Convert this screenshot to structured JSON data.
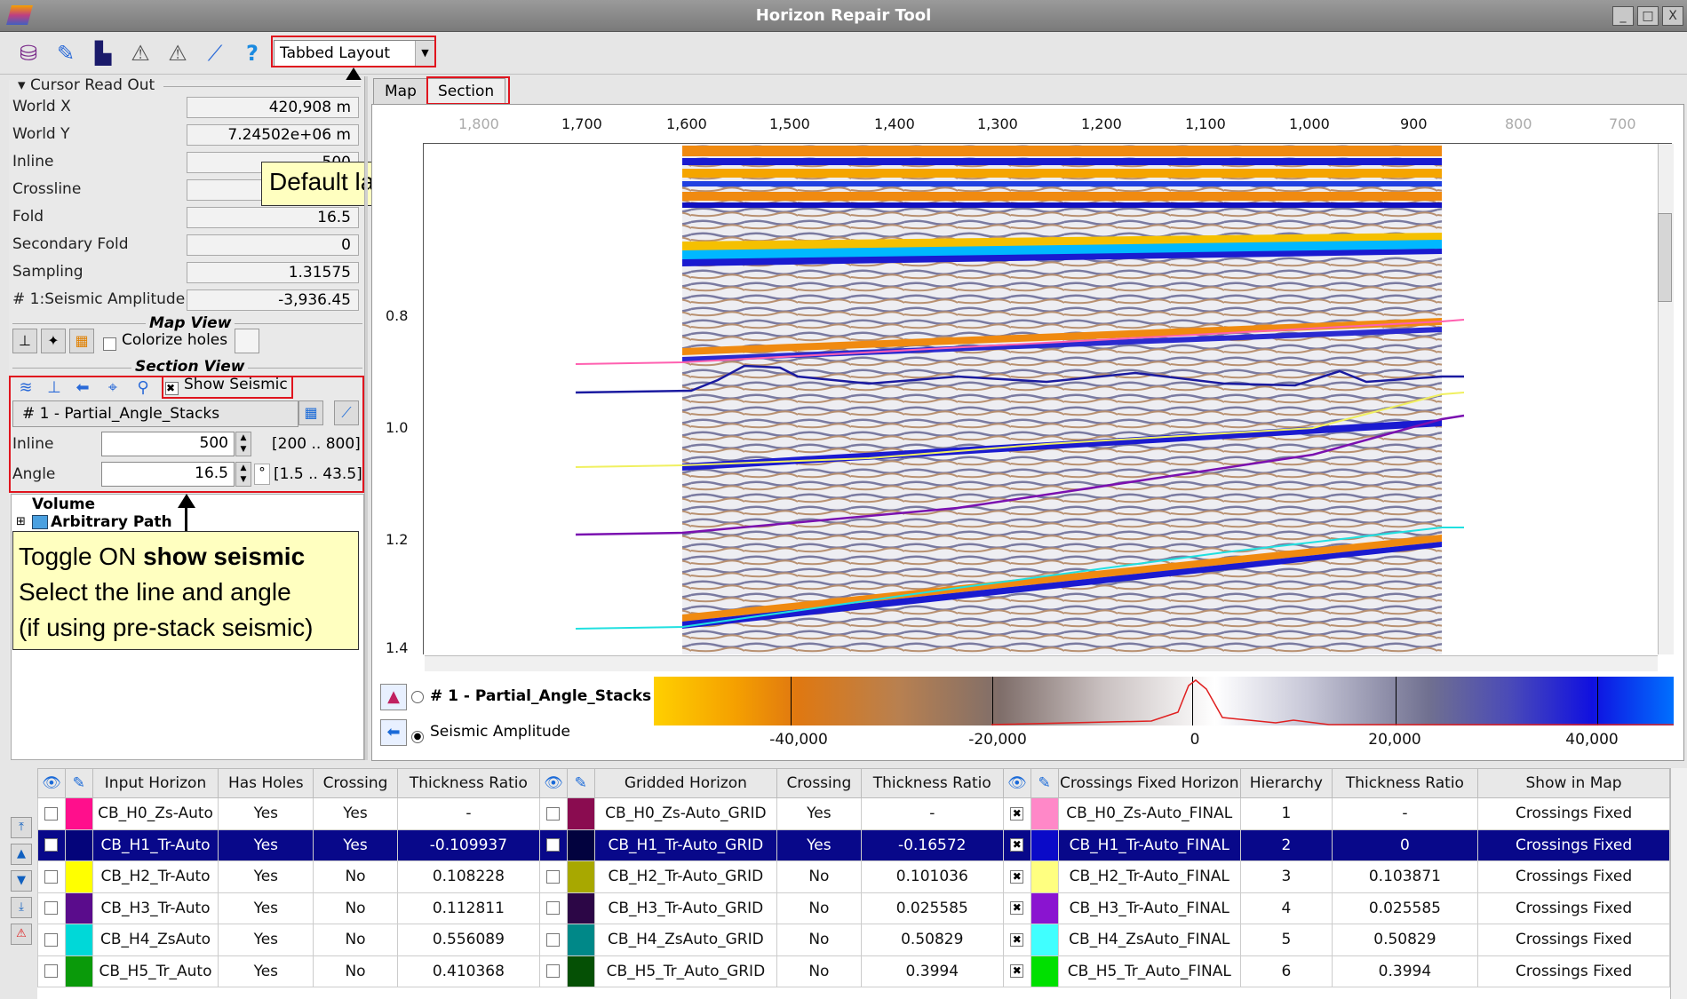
{
  "window": {
    "title": "Horizon Repair Tool",
    "buttons": [
      "_",
      "□",
      "X"
    ]
  },
  "toolbar": {
    "icons": [
      "database-icon",
      "pencil-icon",
      "save-icon",
      "warning-triangle-icon",
      "warning-triangle-alt-icon",
      "brush-icon",
      "help-icon"
    ],
    "layout_combo": "Tabbed Layout"
  },
  "cursor_readout": {
    "header": "Cursor Read Out",
    "rows": [
      {
        "label": "World X",
        "value": "420,908 m"
      },
      {
        "label": "World Y",
        "value": "7.24502e+06 m"
      },
      {
        "label": "Inline",
        "value": "500"
      },
      {
        "label": "Crossline",
        "value": ""
      },
      {
        "label": "Fold",
        "value": "16.5"
      },
      {
        "label": "Secondary Fold",
        "value": "0"
      },
      {
        "label": "Sampling",
        "value": "1.31575"
      },
      {
        "label": "# 1:Seismic Amplitude",
        "value": "-3,936.45"
      }
    ]
  },
  "map_view": {
    "header": "Map View",
    "colorize_label": "Colorize holes"
  },
  "section_view": {
    "header": "Section View",
    "show_seismic_label": "Show Seismic",
    "volume_combo": "# 1 - Partial_Angle_Stacks",
    "inline_label": "Inline",
    "inline_value": "500",
    "inline_range": "[200 .. 800]",
    "angle_label": "Angle",
    "angle_value": "16.5",
    "angle_unit": "°",
    "angle_range": "[1.5 .. 43.5]"
  },
  "tree": {
    "volume": "Volume",
    "arbitrary_path": "Arbitrary Path"
  },
  "callouts": {
    "default_layout": "Default layout",
    "toggle_line1_a": "Toggle ON ",
    "toggle_line1_b": "show seismic",
    "toggle_line2": "Select the line and angle",
    "toggle_line3": "(if using pre-stack seismic)"
  },
  "tabs": [
    {
      "label": "Map"
    },
    {
      "label": "Section"
    }
  ],
  "section": {
    "x_ticks": [
      {
        "label": "1,800",
        "dim": true
      },
      {
        "label": "1,700",
        "dim": false
      },
      {
        "label": "1,600",
        "dim": false
      },
      {
        "label": "1,500",
        "dim": false
      },
      {
        "label": "1,400",
        "dim": false
      },
      {
        "label": "1,300",
        "dim": false
      },
      {
        "label": "1,200",
        "dim": false
      },
      {
        "label": "1,100",
        "dim": false
      },
      {
        "label": "1,000",
        "dim": false
      },
      {
        "label": "900",
        "dim": false
      },
      {
        "label": "800",
        "dim": true
      },
      {
        "label": "700",
        "dim": true
      }
    ],
    "y_ticks": [
      "0.8",
      "1.0",
      "1.2",
      "1.4"
    ]
  },
  "legend": {
    "volume": "# 1 - Partial_Angle_Stacks",
    "attribute": "Seismic Amplitude",
    "ticks": [
      "-40,000",
      "-20,000",
      "0",
      "20,000",
      "40,000"
    ]
  },
  "table": {
    "headers": [
      "Input Horizon",
      "Has Holes",
      "Crossing",
      "Thickness Ratio",
      "Gridded Horizon",
      "Crossing",
      "Thickness Ratio",
      "Crossings Fixed Horizon",
      "Hierarchy",
      "Thickness Ratio",
      "Show in Map"
    ],
    "rows": [
      {
        "c1": "#ff0f8c",
        "input": "CB_H0_Zs-Auto",
        "holes": "Yes",
        "cross": "Yes",
        "ratio": "-",
        "c2": "#8a0c50",
        "grid": "CB_H0_Zs-Auto_GRID",
        "gcross": "Yes",
        "gratio": "-",
        "c3": "#ff88c8",
        "fixed": "CB_H0_Zs-Auto_FINAL",
        "hier": "1",
        "fratio": "-",
        "show": "Crossings Fixed",
        "sel": false
      },
      {
        "c1": "#04047a",
        "input": "CB_H1_Tr-Auto",
        "holes": "Yes",
        "cross": "Yes",
        "ratio": "-0.109937",
        "c2": "#02023e",
        "grid": "CB_H1_Tr-Auto_GRID",
        "gcross": "Yes",
        "gratio": "-0.16572",
        "c3": "#0a0ac8",
        "fixed": "CB_H1_Tr-Auto_FINAL",
        "hier": "2",
        "fratio": "0",
        "show": "Crossings Fixed",
        "sel": true
      },
      {
        "c1": "#ffff00",
        "input": "CB_H2_Tr-Auto",
        "holes": "Yes",
        "cross": "No",
        "ratio": "0.108228",
        "c2": "#a8a800",
        "grid": "CB_H2_Tr-Auto_GRID",
        "gcross": "No",
        "gratio": "0.101036",
        "c3": "#ffff80",
        "fixed": "CB_H2_Tr-Auto_FINAL",
        "hier": "3",
        "fratio": "0.103871",
        "show": "Crossings Fixed",
        "sel": false
      },
      {
        "c1": "#5a0c8c",
        "input": "CB_H3_Tr-Auto",
        "holes": "Yes",
        "cross": "No",
        "ratio": "0.112811",
        "c2": "#2c0646",
        "grid": "CB_H3_Tr-Auto_GRID",
        "gcross": "No",
        "gratio": "0.025585",
        "c3": "#8a14d0",
        "fixed": "CB_H3_Tr-Auto_FINAL",
        "hier": "4",
        "fratio": "0.025585",
        "show": "Crossings Fixed",
        "sel": false
      },
      {
        "c1": "#00d8d8",
        "input": "CB_H4_ZsAuto",
        "holes": "Yes",
        "cross": "No",
        "ratio": "0.556089",
        "c2": "#008888",
        "grid": "CB_H4_ZsAuto_GRID",
        "gcross": "No",
        "gratio": "0.50829",
        "c3": "#40ffff",
        "fixed": "CB_H4_ZsAuto_FINAL",
        "hier": "5",
        "fratio": "0.50829",
        "show": "Crossings Fixed",
        "sel": false
      },
      {
        "c1": "#0a9a0a",
        "input": "CB_H5_Tr_Auto",
        "holes": "Yes",
        "cross": "No",
        "ratio": "0.410368",
        "c2": "#055005",
        "grid": "CB_H5_Tr_Auto_GRID",
        "gcross": "No",
        "gratio": "0.3994",
        "c3": "#00e000",
        "fixed": "CB_H5_Tr_Auto_FINAL",
        "hier": "6",
        "fratio": "0.3994",
        "show": "Crossings Fixed",
        "sel": false
      }
    ]
  }
}
